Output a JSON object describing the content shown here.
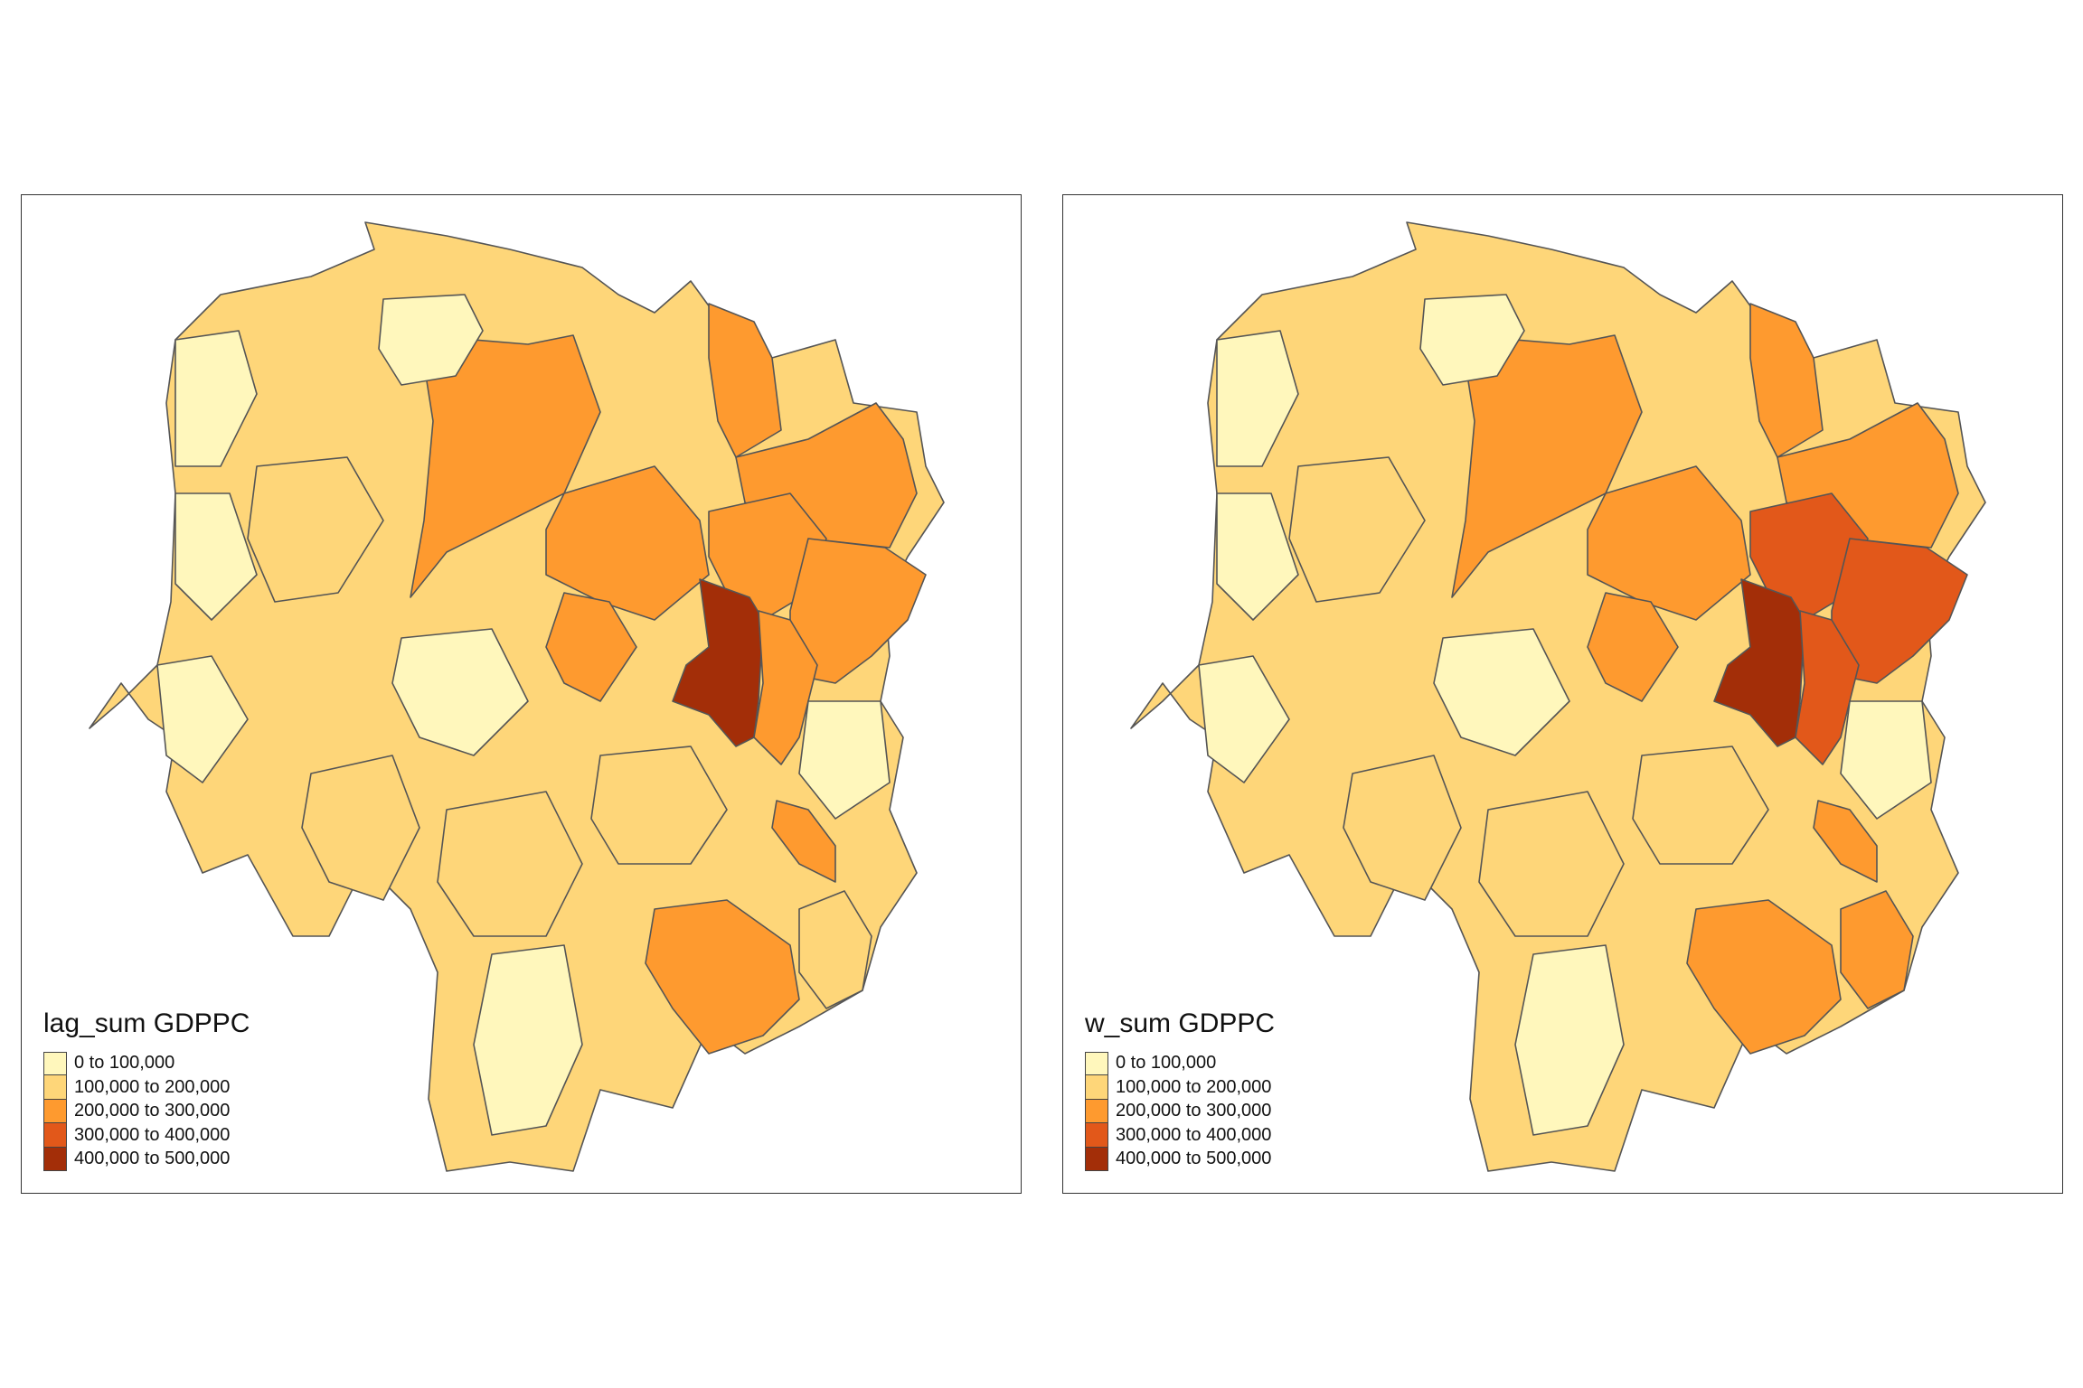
{
  "classes": [
    {
      "label": "0 to 100,000",
      "color": "#fff7bc"
    },
    {
      "label": "100,000 to 200,000",
      "color": "#fed679"
    },
    {
      "label": "200,000 to 300,000",
      "color": "#fe9a2f"
    },
    {
      "label": "300,000 to 400,000",
      "color": "#e2581a"
    },
    {
      "label": "400,000 to 500,000",
      "color": "#a32e08"
    }
  ],
  "maps": [
    {
      "legend_title": "lag_sum GDPPC",
      "legend_labels": [
        "0 to 100,000",
        "100,000 to 200,000",
        "200,000 to 300,000",
        "300,000 to 400,000",
        "400,000 to 500,000"
      ],
      "region_classes": {
        "north_central": 2,
        "northeast_a": 2,
        "northeast_b": 2,
        "central_a": 2,
        "central_b": 2,
        "central_east": 2,
        "capital": 4,
        "capital_south": 2,
        "east_strip": 2,
        "southeast_small": 2,
        "south_central": 2
      }
    },
    {
      "legend_title": "w_sum GDPPC",
      "legend_labels": [
        "0 to 100,000",
        "100,000 to 200,000",
        "200,000 to 300,000",
        "300,000 to 400,000",
        "400,000 to 500,000"
      ],
      "region_classes": {
        "north_central": 2,
        "northeast_a": 2,
        "northeast_b": 2,
        "central_a": 2,
        "central_b": 3,
        "central_east": 3,
        "capital": 4,
        "capital_south": 3,
        "east_strip": 2,
        "southeast_small": 2,
        "south_central": 2,
        "southeast_large": 2
      }
    }
  ]
}
